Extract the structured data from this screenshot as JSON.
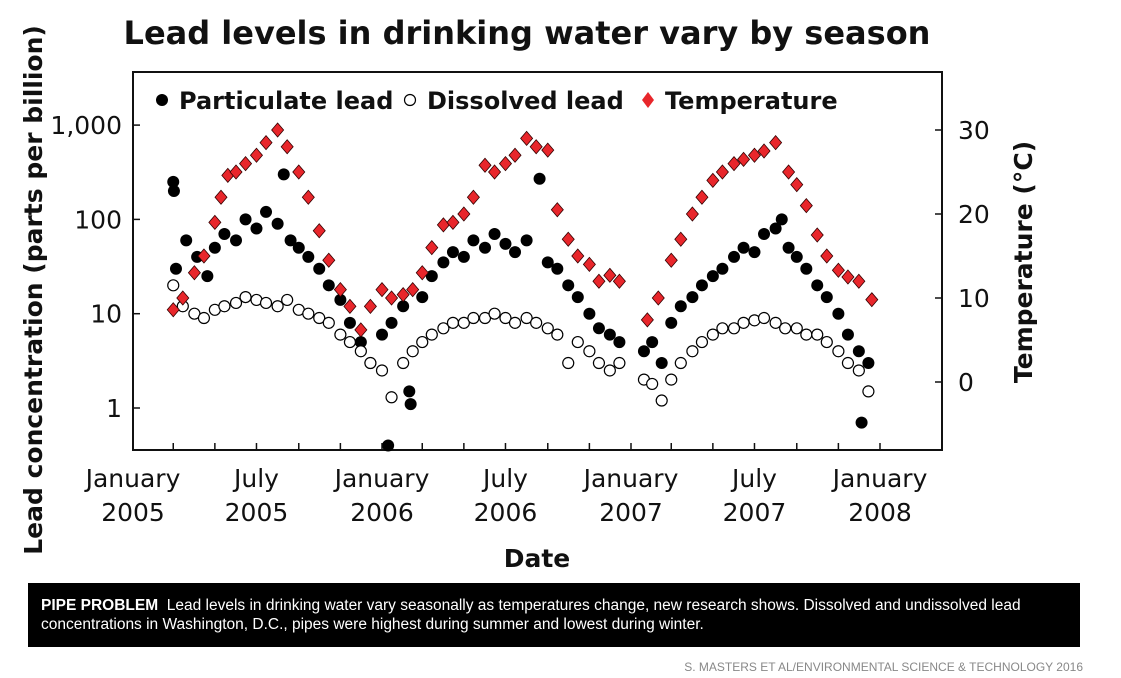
{
  "chart_data": {
    "type": "scatter",
    "title": "Lead levels in drinking water vary by season",
    "xlabel": "Date",
    "ylabel": "Lead concentration (parts per billion)",
    "y2label": "Temperature (°C)",
    "xlim": [
      "2005-01-01",
      "2008-03-01"
    ],
    "x_ticks": [
      {
        "date": "2005-01-01",
        "line1": "January",
        "line2": "2005"
      },
      {
        "date": "2005-07-01",
        "line1": "July",
        "line2": "2005"
      },
      {
        "date": "2006-01-01",
        "line1": "January",
        "line2": "2006"
      },
      {
        "date": "2006-07-01",
        "line1": "July",
        "line2": "2006"
      },
      {
        "date": "2007-01-01",
        "line1": "January",
        "line2": "2007"
      },
      {
        "date": "2007-07-01",
        "line1": "July",
        "line2": "2007"
      },
      {
        "date": "2008-01-01",
        "line1": "January",
        "line2": "2008"
      }
    ],
    "y_scale": "log",
    "ylim": [
      0.4,
      2500
    ],
    "y_ticks": [
      {
        "v": 1000,
        "label": "1,000"
      },
      {
        "v": 100,
        "label": "100"
      },
      {
        "v": 10,
        "label": "10"
      },
      {
        "v": 1,
        "label": "1"
      }
    ],
    "y2lim": [
      -8,
      37
    ],
    "y2_ticks": [
      {
        "v": 30,
        "label": "30"
      },
      {
        "v": 20,
        "label": "20"
      },
      {
        "v": 10,
        "label": "10"
      },
      {
        "v": 0,
        "label": "0"
      }
    ],
    "grid": false,
    "legend": "top",
    "series": [
      {
        "name": "Particulate lead",
        "marker": "filled-circle",
        "color": "#000000",
        "axis": "left",
        "points": [
          [
            "2005-03-01",
            250
          ],
          [
            "2005-03-02",
            200
          ],
          [
            "2005-03-05",
            30
          ],
          [
            "2005-03-20",
            60
          ],
          [
            "2005-04-05",
            40
          ],
          [
            "2005-04-20",
            25
          ],
          [
            "2005-05-01",
            50
          ],
          [
            "2005-05-15",
            70
          ],
          [
            "2005-06-01",
            60
          ],
          [
            "2005-06-15",
            100
          ],
          [
            "2005-07-01",
            80
          ],
          [
            "2005-07-15",
            120
          ],
          [
            "2005-08-01",
            90
          ],
          [
            "2005-08-10",
            300
          ],
          [
            "2005-08-20",
            60
          ],
          [
            "2005-09-01",
            50
          ],
          [
            "2005-09-15",
            40
          ],
          [
            "2005-10-01",
            30
          ],
          [
            "2005-10-15",
            20
          ],
          [
            "2005-11-01",
            14
          ],
          [
            "2005-11-15",
            8
          ],
          [
            "2005-12-01",
            5
          ],
          [
            "2005-12-15",
            3
          ],
          [
            "2006-01-01",
            6
          ],
          [
            "2006-01-15",
            8
          ],
          [
            "2006-01-10",
            0.4
          ],
          [
            "2006-02-01",
            12
          ],
          [
            "2006-02-10",
            1.5
          ],
          [
            "2006-02-12",
            1.1
          ],
          [
            "2006-03-01",
            15
          ],
          [
            "2006-03-15",
            25
          ],
          [
            "2006-04-01",
            35
          ],
          [
            "2006-04-15",
            45
          ],
          [
            "2006-05-01",
            40
          ],
          [
            "2006-05-15",
            60
          ],
          [
            "2006-06-01",
            50
          ],
          [
            "2006-06-15",
            70
          ],
          [
            "2006-07-01",
            55
          ],
          [
            "2006-07-15",
            45
          ],
          [
            "2006-08-01",
            60
          ],
          [
            "2006-08-20",
            270
          ],
          [
            "2006-09-01",
            35
          ],
          [
            "2006-09-15",
            30
          ],
          [
            "2006-10-01",
            20
          ],
          [
            "2006-10-15",
            15
          ],
          [
            "2006-11-01",
            10
          ],
          [
            "2006-11-15",
            7
          ],
          [
            "2006-12-01",
            6
          ],
          [
            "2006-12-15",
            5
          ],
          [
            "2007-01-20",
            4
          ],
          [
            "2007-02-01",
            5
          ],
          [
            "2007-02-15",
            3
          ],
          [
            "2007-03-01",
            8
          ],
          [
            "2007-03-15",
            12
          ],
          [
            "2007-04-01",
            15
          ],
          [
            "2007-04-15",
            20
          ],
          [
            "2007-05-01",
            25
          ],
          [
            "2007-05-15",
            30
          ],
          [
            "2007-06-01",
            40
          ],
          [
            "2007-06-15",
            50
          ],
          [
            "2007-07-01",
            45
          ],
          [
            "2007-07-15",
            70
          ],
          [
            "2007-08-01",
            80
          ],
          [
            "2007-08-10",
            100
          ],
          [
            "2007-08-20",
            50
          ],
          [
            "2007-09-01",
            40
          ],
          [
            "2007-09-15",
            30
          ],
          [
            "2007-10-01",
            20
          ],
          [
            "2007-10-15",
            15
          ],
          [
            "2007-11-01",
            10
          ],
          [
            "2007-11-15",
            6
          ],
          [
            "2007-12-01",
            4
          ],
          [
            "2007-12-05",
            0.7
          ],
          [
            "2007-12-15",
            3
          ]
        ]
      },
      {
        "name": "Dissolved lead",
        "marker": "open-circle",
        "color": "#000000",
        "axis": "left",
        "points": [
          [
            "2005-03-01",
            20
          ],
          [
            "2005-03-15",
            12
          ],
          [
            "2005-04-01",
            10
          ],
          [
            "2005-04-15",
            9
          ],
          [
            "2005-05-01",
            11
          ],
          [
            "2005-05-15",
            12
          ],
          [
            "2005-06-01",
            13
          ],
          [
            "2005-06-15",
            15
          ],
          [
            "2005-07-01",
            14
          ],
          [
            "2005-07-15",
            13
          ],
          [
            "2005-08-01",
            12
          ],
          [
            "2005-08-15",
            14
          ],
          [
            "2005-09-01",
            11
          ],
          [
            "2005-09-15",
            10
          ],
          [
            "2005-10-01",
            9
          ],
          [
            "2005-10-15",
            8
          ],
          [
            "2005-11-01",
            6
          ],
          [
            "2005-11-15",
            5
          ],
          [
            "2005-12-01",
            4
          ],
          [
            "2005-12-15",
            3
          ],
          [
            "2006-01-01",
            2.5
          ],
          [
            "2006-01-15",
            1.3
          ],
          [
            "2006-02-01",
            3
          ],
          [
            "2006-02-15",
            4
          ],
          [
            "2006-03-01",
            5
          ],
          [
            "2006-03-15",
            6
          ],
          [
            "2006-04-01",
            7
          ],
          [
            "2006-04-15",
            8
          ],
          [
            "2006-05-01",
            8
          ],
          [
            "2006-05-15",
            9
          ],
          [
            "2006-06-01",
            9
          ],
          [
            "2006-06-15",
            10
          ],
          [
            "2006-07-01",
            9
          ],
          [
            "2006-07-15",
            8
          ],
          [
            "2006-08-01",
            9
          ],
          [
            "2006-08-15",
            8
          ],
          [
            "2006-09-01",
            7
          ],
          [
            "2006-09-15",
            6
          ],
          [
            "2006-10-01",
            3
          ],
          [
            "2006-10-15",
            5
          ],
          [
            "2006-11-01",
            4
          ],
          [
            "2006-11-15",
            3
          ],
          [
            "2006-12-01",
            2.5
          ],
          [
            "2006-12-15",
            3
          ],
          [
            "2007-01-20",
            2
          ],
          [
            "2007-02-01",
            1.8
          ],
          [
            "2007-02-15",
            1.2
          ],
          [
            "2007-03-01",
            2
          ],
          [
            "2007-03-15",
            3
          ],
          [
            "2007-04-01",
            4
          ],
          [
            "2007-04-15",
            5
          ],
          [
            "2007-05-01",
            6
          ],
          [
            "2007-05-15",
            7
          ],
          [
            "2007-06-01",
            7
          ],
          [
            "2007-06-15",
            8
          ],
          [
            "2007-07-01",
            8.5
          ],
          [
            "2007-07-15",
            9
          ],
          [
            "2007-08-01",
            8
          ],
          [
            "2007-08-15",
            7
          ],
          [
            "2007-09-01",
            7
          ],
          [
            "2007-09-15",
            6
          ],
          [
            "2007-10-01",
            6
          ],
          [
            "2007-10-15",
            5
          ],
          [
            "2007-11-01",
            4
          ],
          [
            "2007-11-15",
            3
          ],
          [
            "2007-12-01",
            2.5
          ],
          [
            "2007-12-15",
            1.5
          ]
        ]
      },
      {
        "name": "Temperature",
        "marker": "diamond",
        "color": "#e8262b",
        "axis": "right",
        "points": [
          [
            "2005-03-01",
            8.6
          ],
          [
            "2005-03-15",
            10
          ],
          [
            "2005-04-01",
            13
          ],
          [
            "2005-04-15",
            15
          ],
          [
            "2005-05-01",
            19
          ],
          [
            "2005-05-10",
            22
          ],
          [
            "2005-05-20",
            24.6
          ],
          [
            "2005-06-01",
            25
          ],
          [
            "2005-06-15",
            26
          ],
          [
            "2005-07-01",
            27
          ],
          [
            "2005-07-15",
            28.5
          ],
          [
            "2005-08-01",
            30
          ],
          [
            "2005-08-15",
            28
          ],
          [
            "2005-09-01",
            25
          ],
          [
            "2005-09-15",
            22
          ],
          [
            "2005-10-01",
            18
          ],
          [
            "2005-10-15",
            14.5
          ],
          [
            "2005-11-01",
            11
          ],
          [
            "2005-11-15",
            9
          ],
          [
            "2005-12-01",
            6.2
          ],
          [
            "2005-12-15",
            9
          ],
          [
            "2006-01-01",
            11
          ],
          [
            "2006-01-15",
            10
          ],
          [
            "2006-02-01",
            10.4
          ],
          [
            "2006-02-15",
            11
          ],
          [
            "2006-03-01",
            13
          ],
          [
            "2006-03-15",
            16
          ],
          [
            "2006-04-01",
            18.7
          ],
          [
            "2006-04-15",
            19
          ],
          [
            "2006-05-01",
            20
          ],
          [
            "2006-05-15",
            22
          ],
          [
            "2006-06-01",
            25.8
          ],
          [
            "2006-06-15",
            25
          ],
          [
            "2006-07-01",
            26
          ],
          [
            "2006-07-15",
            27
          ],
          [
            "2006-08-01",
            29
          ],
          [
            "2006-08-15",
            28
          ],
          [
            "2006-09-01",
            27.6
          ],
          [
            "2006-09-15",
            20.5
          ],
          [
            "2006-10-01",
            17
          ],
          [
            "2006-10-15",
            15
          ],
          [
            "2006-11-01",
            14
          ],
          [
            "2006-11-15",
            12
          ],
          [
            "2006-12-01",
            12.7
          ],
          [
            "2006-12-15",
            12
          ],
          [
            "2007-01-25",
            7.4
          ],
          [
            "2007-02-10",
            10
          ],
          [
            "2007-03-01",
            14.5
          ],
          [
            "2007-03-15",
            17
          ],
          [
            "2007-04-01",
            20
          ],
          [
            "2007-04-15",
            22
          ],
          [
            "2007-05-01",
            24
          ],
          [
            "2007-05-15",
            25
          ],
          [
            "2007-06-01",
            26
          ],
          [
            "2007-06-15",
            26.5
          ],
          [
            "2007-07-01",
            27
          ],
          [
            "2007-07-15",
            27.5
          ],
          [
            "2007-08-01",
            28.5
          ],
          [
            "2007-08-20",
            25
          ],
          [
            "2007-09-01",
            23.5
          ],
          [
            "2007-09-15",
            21
          ],
          [
            "2007-10-01",
            17.5
          ],
          [
            "2007-10-15",
            15
          ],
          [
            "2007-11-01",
            13.3
          ],
          [
            "2007-11-15",
            12.5
          ],
          [
            "2007-12-01",
            12
          ],
          [
            "2007-12-20",
            9.8
          ]
        ]
      }
    ]
  },
  "caption": {
    "label": "PIPE PROBLEM",
    "text": "Lead levels in drinking water vary seasonally as temperatures change, new research shows. Dissolved and undissolved lead concentrations in Washington, D.C., pipes were highest during summer and lowest during winter."
  },
  "credit": "S. MASTERS ET AL/ENVIRONMENTAL SCIENCE & TECHNOLOGY 2016"
}
